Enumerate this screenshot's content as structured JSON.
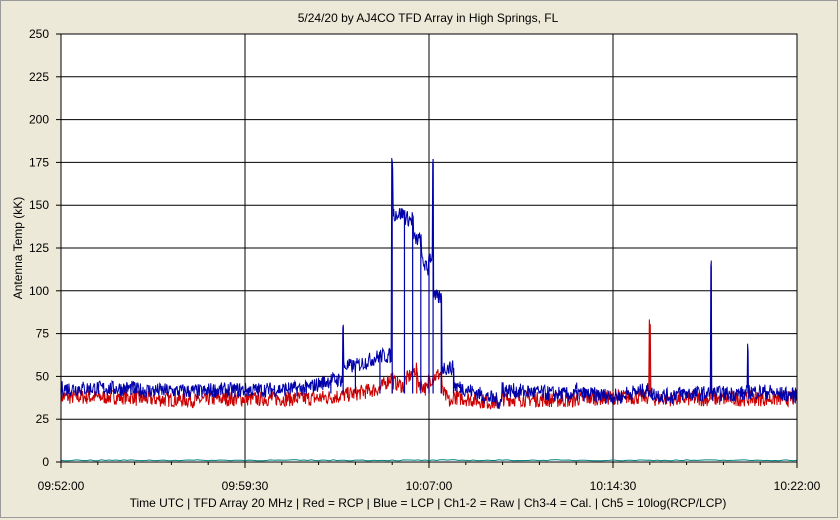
{
  "chart_data": {
    "type": "line",
    "title": "5/24/20  by  AJ4CO TFD Array  in  High Springs, FL",
    "ylabel": "Antenna Temp (kK)",
    "xlabel": "Time UTC | TFD Array 20 MHz | Red = RCP | Blue = LCP | Ch1-2 = Raw | Ch3-4 = Cal. | Ch5 = 10log(RCP/LCP)",
    "ylim": [
      0,
      250
    ],
    "yticks": [
      "0",
      "25",
      "50",
      "75",
      "100",
      "125",
      "150",
      "175",
      "200",
      "225",
      "250"
    ],
    "xticks": [
      "09:52:00",
      "09:59:30",
      "10:07:00",
      "10:14:30",
      "10:22:00"
    ],
    "xlim": [
      "09:52:00",
      "10:22:00"
    ],
    "grid": true,
    "series": [
      {
        "name": "RCP",
        "color": "#cc0000",
        "x": [
          "09:52:00",
          "09:55:00",
          "09:58:00",
          "10:00:00",
          "10:02:00",
          "10:03:00",
          "10:04:00",
          "10:05:00",
          "10:05:30",
          "10:06:00",
          "10:06:30",
          "10:07:00",
          "10:07:30",
          "10:08:00",
          "10:10:00",
          "10:13:00",
          "10:15:00",
          "10:16:00",
          "10:17:00",
          "10:18:30",
          "10:19:00",
          "10:20:00",
          "10:22:00"
        ],
        "values": [
          38,
          38,
          37,
          37,
          37,
          38,
          40,
          43,
          50,
          47,
          55,
          48,
          52,
          42,
          38,
          37,
          38,
          80,
          37,
          54,
          37,
          37,
          37
        ]
      },
      {
        "name": "LCP",
        "color": "#0000aa",
        "x": [
          "09:52:00",
          "09:55:00",
          "09:58:00",
          "10:00:00",
          "10:02:00",
          "10:03:00",
          "10:03:30",
          "10:04:00",
          "10:05:00",
          "10:05:30",
          "10:06:00",
          "10:06:20",
          "10:06:40",
          "10:07:00",
          "10:07:10",
          "10:07:30",
          "10:08:00",
          "10:10:00",
          "10:13:00",
          "10:15:00",
          "10:16:00",
          "10:17:00",
          "10:18:30",
          "10:19:00",
          "10:20:00",
          "10:21:00",
          "10:22:00"
        ],
        "values": [
          43,
          43,
          42,
          42,
          43,
          48,
          79,
          56,
          62,
          175,
          145,
          143,
          130,
          120,
          177,
          96,
          55,
          45,
          42,
          40,
          42,
          40,
          114,
          40,
          65,
          41,
          40
        ]
      },
      {
        "name": "Ch5",
        "color": "#008080",
        "x": [
          "09:52:00",
          "10:22:00"
        ],
        "values": [
          1,
          1
        ]
      }
    ]
  }
}
